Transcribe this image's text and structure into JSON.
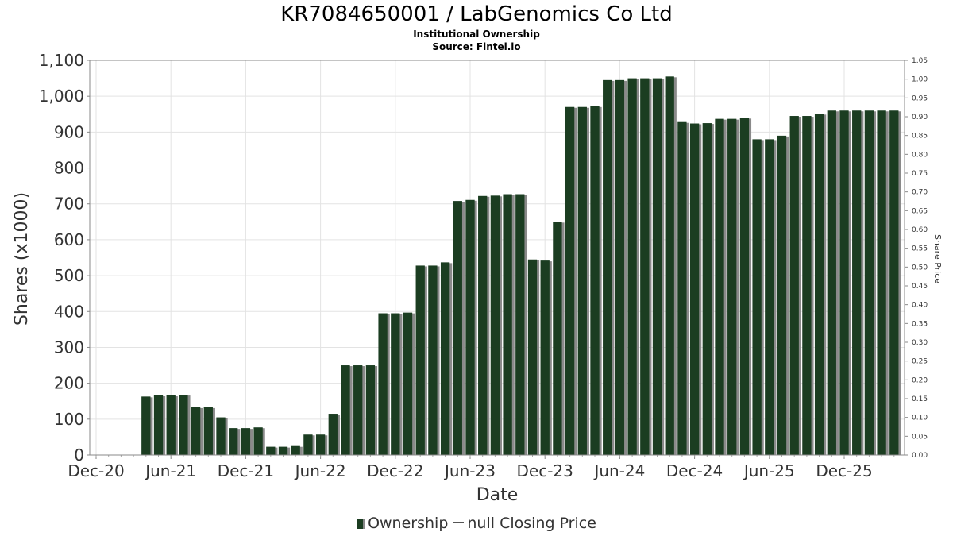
{
  "title": "KR7084650001 / LabGenomics Co Ltd",
  "subtitle": "Institutional Ownership",
  "source": "Source: Fintel.io",
  "legend": {
    "ownership": "Ownership",
    "price": "null Closing Price"
  },
  "chart_data": {
    "type": "bar",
    "xlabel": "Date",
    "ylabel": "Shares (x1000)",
    "y2label": "Share Price",
    "ylim": [
      0,
      1100
    ],
    "y2lim": [
      0,
      1.05
    ],
    "yticks": [
      "0",
      "100",
      "200",
      "300",
      "400",
      "500",
      "600",
      "700",
      "800",
      "900",
      "1,000",
      "1,100"
    ],
    "y2ticks": [
      "0.00",
      "0.05",
      "0.10",
      "0.15",
      "0.20",
      "0.25",
      "0.30",
      "0.35",
      "0.40",
      "0.45",
      "0.50",
      "0.55",
      "0.60",
      "0.65",
      "0.70",
      "0.75",
      "0.80",
      "0.85",
      "0.90",
      "0.95",
      "1.00",
      "1.05"
    ],
    "xticks": [
      "Dec-20",
      "Jun-21",
      "Dec-21",
      "Jun-22",
      "Dec-22",
      "Jun-23",
      "Dec-23",
      "Jun-24",
      "Dec-24",
      "Jun-25",
      "Dec-25"
    ],
    "bar_color": "#1b3d21",
    "grid": true,
    "legend_position": "bottom",
    "series": [
      {
        "name": "Ownership",
        "values": [
          163,
          166,
          166,
          168,
          133,
          133,
          105,
          75,
          75,
          77,
          23,
          23,
          25,
          57,
          57,
          115,
          250,
          250,
          250,
          395,
          395,
          397,
          528,
          528,
          537,
          708,
          711,
          722,
          723,
          727,
          727,
          545,
          542,
          650,
          970,
          970,
          972,
          1045,
          1045,
          1050,
          1050,
          1050,
          1055,
          928,
          924,
          925,
          937,
          937,
          940,
          880,
          880,
          890,
          945,
          945,
          951,
          960,
          960,
          960,
          960,
          960,
          960
        ]
      }
    ]
  }
}
